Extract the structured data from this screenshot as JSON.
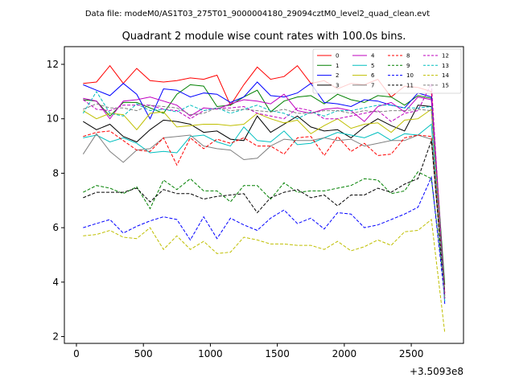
{
  "suptitle": "Data file: modeM0/AS1T03_275T01_9000004180_29094cztM0_level2_quad_clean.evt",
  "chart_data": {
    "type": "line",
    "title": "Quadrant 2 module wise count rates with 100.0s bins.",
    "xlabel": "",
    "ylabel": "",
    "x_offset_label": "+3.5093e8",
    "xlim": [
      -90,
      2890
    ],
    "ylim": [
      1.75,
      12.65
    ],
    "xticks": [
      0,
      500,
      1000,
      1500,
      2000,
      2500
    ],
    "yticks": [
      2,
      4,
      6,
      8,
      10,
      12
    ],
    "grid": false,
    "legend_position": "top-right",
    "legend_columns": 4,
    "x": [
      50,
      150,
      250,
      350,
      450,
      550,
      650,
      750,
      850,
      950,
      1050,
      1150,
      1250,
      1350,
      1450,
      1550,
      1650,
      1750,
      1850,
      1950,
      2050,
      2150,
      2250,
      2350,
      2450,
      2550,
      2650,
      2750
    ],
    "series": [
      {
        "name": "0",
        "color": "#ff0000",
        "dash": "solid",
        "values": [
          11.3,
          11.35,
          11.95,
          11.3,
          11.85,
          11.4,
          11.35,
          11.4,
          11.5,
          11.45,
          11.6,
          10.5,
          11.25,
          11.9,
          11.45,
          11.55,
          11.95,
          11.3,
          11.4,
          11.1,
          11.3,
          11.25,
          11.45,
          10.8,
          11.2,
          11.15,
          11.0,
          3.6
        ]
      },
      {
        "name": "1",
        "color": "#008000",
        "dash": "solid",
        "values": [
          10.7,
          10.65,
          10.1,
          10.6,
          10.6,
          10.4,
          10.2,
          10.9,
          11.25,
          11.2,
          10.45,
          10.5,
          10.8,
          11.05,
          10.25,
          10.65,
          10.8,
          10.85,
          10.55,
          10.9,
          10.7,
          10.6,
          10.85,
          10.8,
          10.5,
          10.85,
          10.75,
          3.9
        ]
      },
      {
        "name": "2",
        "color": "#0000ff",
        "dash": "solid",
        "values": [
          11.25,
          11.05,
          10.85,
          11.3,
          10.9,
          10.0,
          11.1,
          11.05,
          10.8,
          10.95,
          10.9,
          10.6,
          10.8,
          11.35,
          10.85,
          10.8,
          10.95,
          11.3,
          10.6,
          10.55,
          10.45,
          10.7,
          10.65,
          10.5,
          10.4,
          10.95,
          10.8,
          3.2
        ]
      },
      {
        "name": "3",
        "color": "#000000",
        "dash": "solid",
        "values": [
          9.9,
          9.6,
          9.8,
          9.35,
          9.15,
          9.6,
          9.95,
          9.9,
          9.8,
          9.5,
          9.55,
          9.25,
          9.2,
          10.1,
          9.5,
          9.8,
          10.1,
          9.7,
          9.55,
          9.6,
          9.3,
          9.7,
          10.0,
          9.75,
          9.55,
          10.5,
          10.45,
          3.5
        ]
      },
      {
        "name": "4",
        "color": "#bf00bf",
        "dash": "solid",
        "values": [
          10.75,
          10.65,
          10.0,
          10.65,
          10.7,
          10.8,
          10.65,
          10.5,
          10.1,
          10.4,
          10.35,
          10.55,
          10.7,
          10.65,
          10.55,
          10.9,
          10.3,
          10.2,
          10.35,
          10.4,
          10.3,
          9.9,
          10.45,
          10.6,
          10.25,
          10.8,
          10.7,
          3.6
        ]
      },
      {
        "name": "5",
        "color": "#00bfbf",
        "dash": "solid",
        "values": [
          9.3,
          9.4,
          9.15,
          9.3,
          9.1,
          8.75,
          8.8,
          8.75,
          9.35,
          9.4,
          9.15,
          9.0,
          9.7,
          9.2,
          9.15,
          9.55,
          9.05,
          9.1,
          9.3,
          9.5,
          9.4,
          9.3,
          9.5,
          9.2,
          9.45,
          9.4,
          9.8,
          3.3
        ]
      },
      {
        "name": "6",
        "color": "#bfbf00",
        "dash": "solid",
        "values": [
          10.3,
          10.0,
          10.2,
          10.15,
          9.6,
          10.2,
          10.25,
          9.7,
          9.75,
          9.8,
          9.8,
          9.75,
          9.8,
          10.2,
          10.0,
          9.85,
          9.95,
          9.45,
          9.75,
          10.0,
          9.65,
          9.8,
          9.85,
          9.5,
          9.95,
          10.0,
          10.35,
          3.4
        ]
      },
      {
        "name": "7",
        "color": "#808080",
        "dash": "solid",
        "values": [
          8.7,
          9.45,
          8.8,
          8.4,
          8.85,
          8.9,
          9.3,
          9.35,
          9.4,
          9.0,
          8.9,
          8.85,
          8.5,
          8.55,
          9.0,
          9.25,
          9.2,
          9.2,
          9.3,
          9.2,
          9.25,
          9.0,
          9.1,
          9.2,
          9.2,
          9.4,
          9.25,
          3.4
        ]
      },
      {
        "name": "8",
        "color": "#ff0000",
        "dash": "dashed",
        "values": [
          9.35,
          9.5,
          9.55,
          9.2,
          8.85,
          8.8,
          9.3,
          8.3,
          9.3,
          8.9,
          9.25,
          9.1,
          9.3,
          9.0,
          9.0,
          8.7,
          9.3,
          9.35,
          8.65,
          9.35,
          8.8,
          9.1,
          8.65,
          8.7,
          9.3,
          9.4,
          9.35,
          3.6
        ]
      },
      {
        "name": "9",
        "color": "#008000",
        "dash": "dashed",
        "values": [
          7.3,
          7.55,
          7.45,
          7.25,
          7.5,
          6.7,
          7.75,
          7.4,
          7.8,
          7.35,
          7.35,
          6.95,
          7.55,
          7.55,
          7.05,
          7.65,
          7.3,
          7.35,
          7.35,
          7.45,
          7.55,
          7.8,
          7.75,
          7.25,
          7.35,
          8.05,
          7.8,
          3.7
        ]
      },
      {
        "name": "10",
        "color": "#0000ff",
        "dash": "dashed",
        "values": [
          6.0,
          6.15,
          6.3,
          5.8,
          6.05,
          6.25,
          6.4,
          6.3,
          5.55,
          6.4,
          5.6,
          6.35,
          6.1,
          5.9,
          6.35,
          6.65,
          6.15,
          6.35,
          5.95,
          6.55,
          6.5,
          6.0,
          6.1,
          6.3,
          6.5,
          6.75,
          7.85,
          3.4
        ]
      },
      {
        "name": "11",
        "color": "#000000",
        "dash": "dashed",
        "values": [
          7.1,
          7.3,
          7.3,
          7.3,
          7.45,
          6.95,
          7.4,
          7.25,
          7.25,
          7.05,
          7.15,
          7.2,
          7.25,
          6.55,
          7.1,
          7.3,
          7.4,
          7.1,
          7.2,
          6.8,
          7.2,
          7.2,
          7.45,
          7.3,
          7.6,
          7.8,
          9.2,
          3.5
        ]
      },
      {
        "name": "12",
        "color": "#bf00bf",
        "dash": "dashed",
        "values": [
          10.7,
          10.35,
          10.3,
          10.5,
          10.5,
          10.5,
          10.35,
          10.3,
          10.0,
          10.3,
          10.4,
          10.4,
          10.45,
          10.2,
          10.1,
          10.0,
          10.4,
          10.3,
          10.0,
          10.0,
          10.1,
          10.2,
          10.3,
          9.9,
          10.2,
          10.3,
          11.3,
          3.4
        ]
      },
      {
        "name": "13",
        "color": "#00bfbf",
        "dash": "dashed",
        "values": [
          10.2,
          11.0,
          10.2,
          10.1,
          10.55,
          10.3,
          10.35,
          10.25,
          10.5,
          10.3,
          10.4,
          10.2,
          10.35,
          10.5,
          10.3,
          10.2,
          10.0,
          10.25,
          10.1,
          10.3,
          10.3,
          10.4,
          10.5,
          10.5,
          10.4,
          10.4,
          10.45,
          3.3
        ]
      },
      {
        "name": "14",
        "color": "#bfbf00",
        "dash": "dashed",
        "values": [
          5.7,
          5.75,
          5.9,
          5.65,
          5.6,
          6.0,
          5.2,
          5.7,
          5.2,
          5.5,
          5.05,
          5.1,
          5.65,
          5.55,
          5.4,
          5.4,
          5.35,
          5.35,
          5.2,
          5.5,
          5.15,
          5.3,
          5.55,
          5.35,
          5.85,
          5.9,
          6.3,
          2.15
        ]
      },
      {
        "name": "15",
        "color": "#808080",
        "dash": "dashed",
        "values": [
          10.35,
          10.55,
          10.4,
          10.4,
          10.3,
          10.5,
          10.45,
          10.4,
          10.15,
          10.2,
          10.4,
          10.3,
          10.35,
          10.3,
          10.25,
          10.35,
          10.2,
          10.2,
          10.3,
          10.3,
          10.2,
          10.3,
          10.25,
          10.3,
          10.3,
          10.35,
          10.3,
          3.4
        ]
      }
    ]
  }
}
